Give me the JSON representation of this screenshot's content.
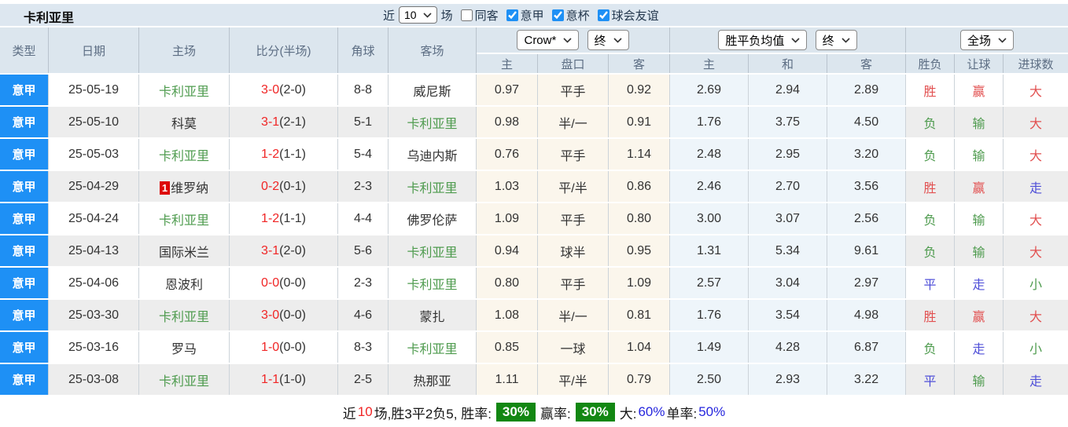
{
  "title": "卡利亚里",
  "toolbar": {
    "recent_label": "近",
    "recent_value": "10",
    "matches_label": "场",
    "checkboxes": [
      {
        "label": "同客",
        "checked": false
      },
      {
        "label": "意甲",
        "checked": true
      },
      {
        "label": "意杯",
        "checked": true
      },
      {
        "label": "球会友谊",
        "checked": true
      }
    ]
  },
  "header": {
    "left_columns": [
      "类型",
      "日期",
      "主场",
      "比分(半场)",
      "角球",
      "客场"
    ],
    "odds_group": {
      "select_company": "Crow*",
      "select_time": "终",
      "sub": [
        "主",
        "盘口",
        "客"
      ]
    },
    "avg_group": {
      "select_type": "胜平负均值",
      "select_time": "终",
      "sub": [
        "主",
        "和",
        "客"
      ]
    },
    "result_group": {
      "select_scope": "全场",
      "sub": [
        "胜负",
        "让球",
        "进球数"
      ]
    }
  },
  "colors": {
    "league_bg": "#1e90f5",
    "odds_col_bg": "#fbf6ec",
    "avg_col_bg": "#eef5fa",
    "win_red": "#e25050",
    "lose_green": "#4e9b4e",
    "draw_blue": "#4f4fd8",
    "score_red": "#f02525",
    "badge_green": "#128712",
    "rank_badge_red": "#dd0808"
  },
  "rows": [
    {
      "league": "意甲",
      "date": "25-05-19",
      "home_badge": "",
      "home": "卡利亚里",
      "home_cls": "green",
      "score": "3-0",
      "half": "(2-0)",
      "corners": "8-8",
      "away": "威尼斯",
      "away_cls": "dark",
      "o1": "0.97",
      "o2": "平手",
      "o3": "0.92",
      "a1": "2.69",
      "a2": "2.94",
      "a3": "2.89",
      "res": "胜",
      "res_cls": "red",
      "han": "赢",
      "han_cls": "red",
      "goal": "大",
      "goal_cls": "red"
    },
    {
      "league": "意甲",
      "date": "25-05-10",
      "home_badge": "",
      "home": "科莫",
      "home_cls": "dark",
      "score": "3-1",
      "half": "(2-1)",
      "corners": "5-1",
      "away": "卡利亚里",
      "away_cls": "green",
      "o1": "0.98",
      "o2": "半/一",
      "o3": "0.91",
      "a1": "1.76",
      "a2": "3.75",
      "a3": "4.50",
      "res": "负",
      "res_cls": "green",
      "han": "输",
      "han_cls": "green",
      "goal": "大",
      "goal_cls": "red"
    },
    {
      "league": "意甲",
      "date": "25-05-03",
      "home_badge": "",
      "home": "卡利亚里",
      "home_cls": "green",
      "score": "1-2",
      "half": "(1-1)",
      "corners": "5-4",
      "away": "乌迪内斯",
      "away_cls": "dark",
      "o1": "0.76",
      "o2": "平手",
      "o3": "1.14",
      "a1": "2.48",
      "a2": "2.95",
      "a3": "3.20",
      "res": "负",
      "res_cls": "green",
      "han": "输",
      "han_cls": "green",
      "goal": "大",
      "goal_cls": "red"
    },
    {
      "league": "意甲",
      "date": "25-04-29",
      "home_badge": "1",
      "home": "维罗纳",
      "home_cls": "dark",
      "score": "0-2",
      "half": "(0-1)",
      "corners": "2-3",
      "away": "卡利亚里",
      "away_cls": "green",
      "o1": "1.03",
      "o2": "平/半",
      "o3": "0.86",
      "a1": "2.46",
      "a2": "2.70",
      "a3": "3.56",
      "res": "胜",
      "res_cls": "red",
      "han": "赢",
      "han_cls": "red",
      "goal": "走",
      "goal_cls": "blue"
    },
    {
      "league": "意甲",
      "date": "25-04-24",
      "home_badge": "",
      "home": "卡利亚里",
      "home_cls": "green",
      "score": "1-2",
      "half": "(1-1)",
      "corners": "4-4",
      "away": "佛罗伦萨",
      "away_cls": "dark",
      "o1": "1.09",
      "o2": "平手",
      "o3": "0.80",
      "a1": "3.00",
      "a2": "3.07",
      "a3": "2.56",
      "res": "负",
      "res_cls": "green",
      "han": "输",
      "han_cls": "green",
      "goal": "大",
      "goal_cls": "red"
    },
    {
      "league": "意甲",
      "date": "25-04-13",
      "home_badge": "",
      "home": "国际米兰",
      "home_cls": "dark",
      "score": "3-1",
      "half": "(2-0)",
      "corners": "5-6",
      "away": "卡利亚里",
      "away_cls": "green",
      "o1": "0.94",
      "o2": "球半",
      "o3": "0.95",
      "a1": "1.31",
      "a2": "5.34",
      "a3": "9.61",
      "res": "负",
      "res_cls": "green",
      "han": "输",
      "han_cls": "green",
      "goal": "大",
      "goal_cls": "red"
    },
    {
      "league": "意甲",
      "date": "25-04-06",
      "home_badge": "",
      "home": "恩波利",
      "home_cls": "dark",
      "score": "0-0",
      "half": "(0-0)",
      "corners": "2-3",
      "away": "卡利亚里",
      "away_cls": "green",
      "o1": "0.80",
      "o2": "平手",
      "o3": "1.09",
      "a1": "2.57",
      "a2": "3.04",
      "a3": "2.97",
      "res": "平",
      "res_cls": "blue",
      "han": "走",
      "han_cls": "blue",
      "goal": "小",
      "goal_cls": "green"
    },
    {
      "league": "意甲",
      "date": "25-03-30",
      "home_badge": "",
      "home": "卡利亚里",
      "home_cls": "green",
      "score": "3-0",
      "half": "(0-0)",
      "corners": "4-6",
      "away": "蒙扎",
      "away_cls": "dark",
      "o1": "1.08",
      "o2": "半/一",
      "o3": "0.81",
      "a1": "1.76",
      "a2": "3.54",
      "a3": "4.98",
      "res": "胜",
      "res_cls": "red",
      "han": "赢",
      "han_cls": "red",
      "goal": "大",
      "goal_cls": "red"
    },
    {
      "league": "意甲",
      "date": "25-03-16",
      "home_badge": "",
      "home": "罗马",
      "home_cls": "dark",
      "score": "1-0",
      "half": "(0-0)",
      "corners": "8-3",
      "away": "卡利亚里",
      "away_cls": "green",
      "o1": "0.85",
      "o2": "一球",
      "o3": "1.04",
      "a1": "1.49",
      "a2": "4.28",
      "a3": "6.87",
      "res": "负",
      "res_cls": "green",
      "han": "走",
      "han_cls": "blue",
      "goal": "小",
      "goal_cls": "green"
    },
    {
      "league": "意甲",
      "date": "25-03-08",
      "home_badge": "",
      "home": "卡利亚里",
      "home_cls": "green",
      "score": "1-1",
      "half": "(1-0)",
      "corners": "2-5",
      "away": "热那亚",
      "away_cls": "dark",
      "o1": "1.11",
      "o2": "平/半",
      "o3": "0.79",
      "a1": "2.50",
      "a2": "2.93",
      "a3": "3.22",
      "res": "平",
      "res_cls": "blue",
      "han": "输",
      "han_cls": "green",
      "goal": "走",
      "goal_cls": "blue"
    }
  ],
  "footer": {
    "segments": [
      {
        "text": "近",
        "style": "plain"
      },
      {
        "text": "10",
        "style": "red"
      },
      {
        "text": "场,胜3平2负5, 胜率:",
        "style": "plain"
      },
      {
        "text": "30%",
        "style": "badge-green"
      },
      {
        "text": "赢率:",
        "style": "plain"
      },
      {
        "text": "30%",
        "style": "badge-green"
      },
      {
        "text": "大:",
        "style": "plain"
      },
      {
        "text": "60%",
        "style": "blue"
      },
      {
        "text": " 单率:",
        "style": "plain"
      },
      {
        "text": "50%",
        "style": "blue"
      }
    ]
  }
}
